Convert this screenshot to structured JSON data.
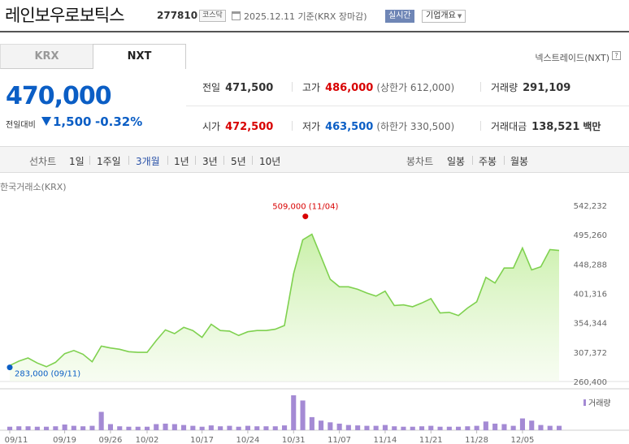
{
  "header": {
    "stock_name": "레인보우로보틱스",
    "stock_code": "277810",
    "market": "코스닥",
    "date_text": "2025.12.11  기준(KRX 장마감)",
    "realtime_label": "실시간",
    "company_label": "기업개요"
  },
  "tabs": [
    {
      "label": "KRX",
      "active": false
    },
    {
      "label": "NXT",
      "active": true
    }
  ],
  "nxt_link": "넥스트레이드(NXT)",
  "price": {
    "current": "470,000",
    "change_label": "전일대비",
    "change_amount": "1,500",
    "change_pct": "-0.32%",
    "direction": "down"
  },
  "stats": {
    "prev_close": {
      "label": "전일",
      "value": "471,500"
    },
    "high": {
      "label": "고가",
      "value": "486,000",
      "sub": "(상한가 612,000)"
    },
    "volume": {
      "label": "거래량",
      "value": "291,109"
    },
    "open": {
      "label": "시가",
      "value": "472,500"
    },
    "low": {
      "label": "저가",
      "value": "463,500",
      "sub": "(하한가 330,500)"
    },
    "amount": {
      "label": "거래대금",
      "value": "138,521",
      "unit": "백만"
    }
  },
  "toolbar": {
    "line_chart_label": "선차트",
    "periods": [
      "1일",
      "1주일",
      "3개월",
      "1년",
      "3년",
      "5년",
      "10년"
    ],
    "active_period": "3개월",
    "candle_label": "봉차트",
    "candle_periods": [
      "일봉",
      "주봉",
      "월봉"
    ]
  },
  "colors": {
    "up": "#d80000",
    "down": "#0b5ec5",
    "line": "#7fd14f",
    "volume": "#a48ad4"
  },
  "chart_data": {
    "type": "area",
    "source_label": "한국거래소(KRX)",
    "y_ticks": [
      "542,232",
      "495,260",
      "448,288",
      "401,316",
      "354,344",
      "307,372",
      "260,400"
    ],
    "ylim": [
      260400,
      542232
    ],
    "x_tick_labels": [
      "09/11",
      "09/19",
      "09/26",
      "10/02",
      "10/17",
      "10/24",
      "10/31",
      "11/07",
      "11/14",
      "11/21",
      "11/28",
      "12/05"
    ],
    "high_annotation": "509,000 (11/04)",
    "low_annotation": "283,000 (09/11)",
    "volume_legend": "거래량",
    "x": [
      "09/11",
      "09/12",
      "09/15",
      "09/16",
      "09/17",
      "09/18",
      "09/19",
      "09/22",
      "09/23",
      "09/24",
      "09/25",
      "09/26",
      "09/29",
      "09/30",
      "10/01",
      "10/02",
      "10/10",
      "10/13",
      "10/14",
      "10/15",
      "10/16",
      "10/17",
      "10/20",
      "10/21",
      "10/22",
      "10/23",
      "10/24",
      "10/27",
      "10/28",
      "10/29",
      "10/30",
      "10/31",
      "11/03",
      "11/04",
      "11/05",
      "11/06",
      "11/07",
      "11/10",
      "11/11",
      "11/12",
      "11/13",
      "11/14",
      "11/17",
      "11/18",
      "11/19",
      "11/20",
      "11/21",
      "11/24",
      "11/25",
      "11/26",
      "11/27",
      "11/28",
      "12/01",
      "12/02",
      "12/03",
      "12/04",
      "12/05",
      "12/08",
      "12/09",
      "12/10",
      "12/11"
    ],
    "close": [
      286000,
      293000,
      298000,
      290000,
      284000,
      291000,
      305000,
      310000,
      304000,
      292000,
      317000,
      314000,
      312000,
      308000,
      307000,
      307000,
      326000,
      343000,
      337000,
      347000,
      342000,
      331000,
      352000,
      342000,
      341000,
      334000,
      340000,
      342000,
      342000,
      344000,
      350000,
      433000,
      487000,
      496000,
      460000,
      424000,
      412000,
      412000,
      408000,
      402000,
      397000,
      405000,
      382000,
      383000,
      380000,
      386000,
      393000,
      370000,
      371000,
      366000,
      378000,
      388000,
      427000,
      418000,
      442000,
      442000,
      474000,
      439000,
      444000,
      471500,
      470000
    ],
    "volume": [
      8,
      9,
      9,
      8,
      8,
      9,
      13,
      10,
      9,
      10,
      42,
      14,
      9,
      8,
      8,
      8,
      14,
      15,
      14,
      12,
      10,
      8,
      11,
      9,
      10,
      8,
      10,
      9,
      9,
      9,
      11,
      80,
      68,
      30,
      22,
      18,
      15,
      12,
      11,
      10,
      10,
      12,
      9,
      8,
      8,
      9,
      10,
      8,
      8,
      8,
      9,
      10,
      20,
      15,
      14,
      10,
      27,
      22,
      12,
      10,
      10
    ]
  }
}
